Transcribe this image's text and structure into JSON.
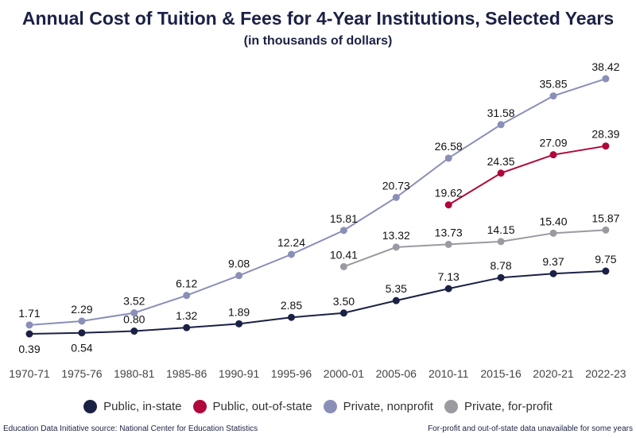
{
  "chart_data": {
    "type": "line",
    "title": "Annual Cost of Tuition & Fees for 4-Year Institutions, Selected Years",
    "subtitle": "(in thousands of dollars)",
    "categories": [
      "1970-71",
      "1975-76",
      "1980-81",
      "1985-86",
      "1990-91",
      "1995-96",
      "2000-01",
      "2005-06",
      "2010-11",
      "2015-16",
      "2020-21",
      "2022-23"
    ],
    "series": [
      {
        "name": "Public, in-state",
        "color": "#1b2145",
        "values": [
          0.39,
          0.54,
          0.8,
          1.32,
          1.89,
          2.85,
          3.5,
          5.35,
          7.13,
          8.78,
          9.37,
          9.75
        ]
      },
      {
        "name": "Public, out-of-state",
        "color": "#b0083c",
        "values": [
          null,
          null,
          null,
          null,
          null,
          null,
          null,
          null,
          19.62,
          24.35,
          27.09,
          28.39
        ]
      },
      {
        "name": "Private, nonprofit",
        "color": "#8a8fb8",
        "values": [
          1.71,
          2.29,
          3.52,
          6.12,
          9.08,
          12.24,
          15.81,
          20.73,
          26.58,
          31.58,
          35.85,
          38.42
        ]
      },
      {
        "name": "Private, for-profit",
        "color": "#9a9aa0",
        "values": [
          null,
          null,
          null,
          null,
          null,
          null,
          10.41,
          13.32,
          13.73,
          14.15,
          15.4,
          15.87
        ]
      }
    ],
    "legend_position": "bottom",
    "grid": false,
    "data_labels": true
  },
  "footer": {
    "source": "Education Data Initiative source: National Center for Education Statistics",
    "note": "For-profit and out-of-state data unavailable for some years"
  }
}
